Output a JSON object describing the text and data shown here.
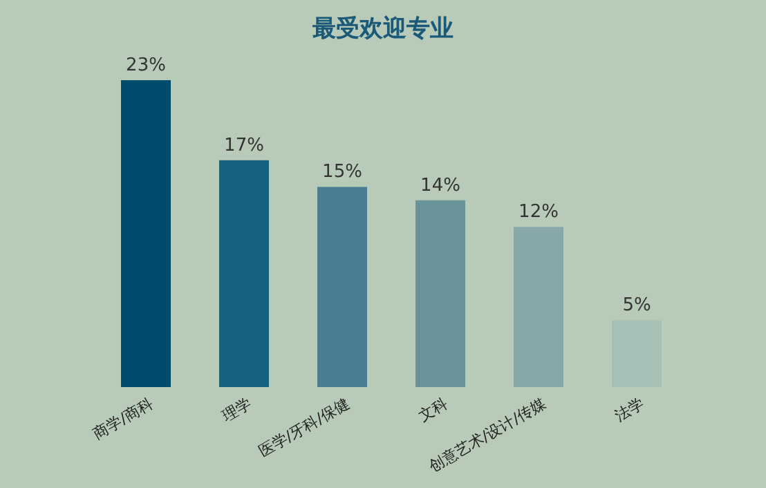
{
  "chart_data": {
    "type": "bar",
    "title": "最受欢迎专业",
    "categories": [
      "商学/商科",
      "理学",
      "医学/牙科/保健",
      "文科",
      "创意艺术/设计/传媒",
      "法学"
    ],
    "values": [
      23,
      17,
      15,
      14,
      12,
      5
    ],
    "colors": [
      "#004c6d",
      "#15627e",
      "#4a7d91",
      "#6a929b",
      "#87a7a8",
      "#a6c0b5"
    ],
    "value_labels": [
      "23%",
      "17%",
      "15%",
      "14%",
      "12%",
      "5%"
    ]
  }
}
